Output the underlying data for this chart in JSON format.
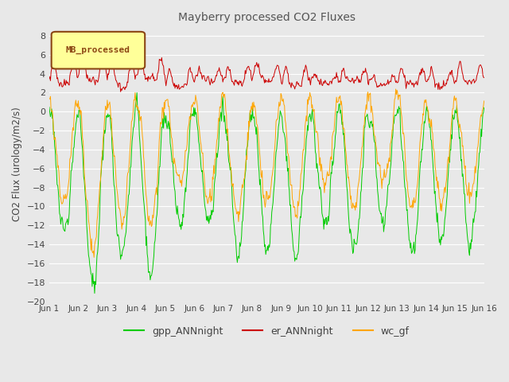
{
  "title": "Mayberry processed CO2 Fluxes",
  "ylabel": "CO2 Flux (urology/m2/s)",
  "ylim": [
    -20,
    9
  ],
  "yticks": [
    -20,
    -18,
    -16,
    -14,
    -12,
    -10,
    -8,
    -6,
    -4,
    -2,
    0,
    2,
    4,
    6,
    8
  ],
  "n_days": 15,
  "points_per_day": 48,
  "gpp_color": "#00CC00",
  "er_color": "#CC0000",
  "wc_color": "#FFA500",
  "mb_legend_bg": "#FFFF99",
  "mb_legend_border": "#8B4513",
  "background_color": "#E8E8E8",
  "grid_color": "#FFFFFF",
  "title_color": "#555555",
  "label_color": "#444444",
  "xtick_labels": [
    "Jun 1",
    "Jun 2",
    "Jun 3",
    "Jun 4",
    "Jun 5",
    "Jun 6",
    "Jun 7",
    "Jun 8",
    "Jun 9",
    "Jun 10",
    "Jun 11",
    "Jun 12",
    "Jun 13",
    "Jun 14",
    "Jun 15",
    "Jun 16"
  ],
  "seed": 12345
}
